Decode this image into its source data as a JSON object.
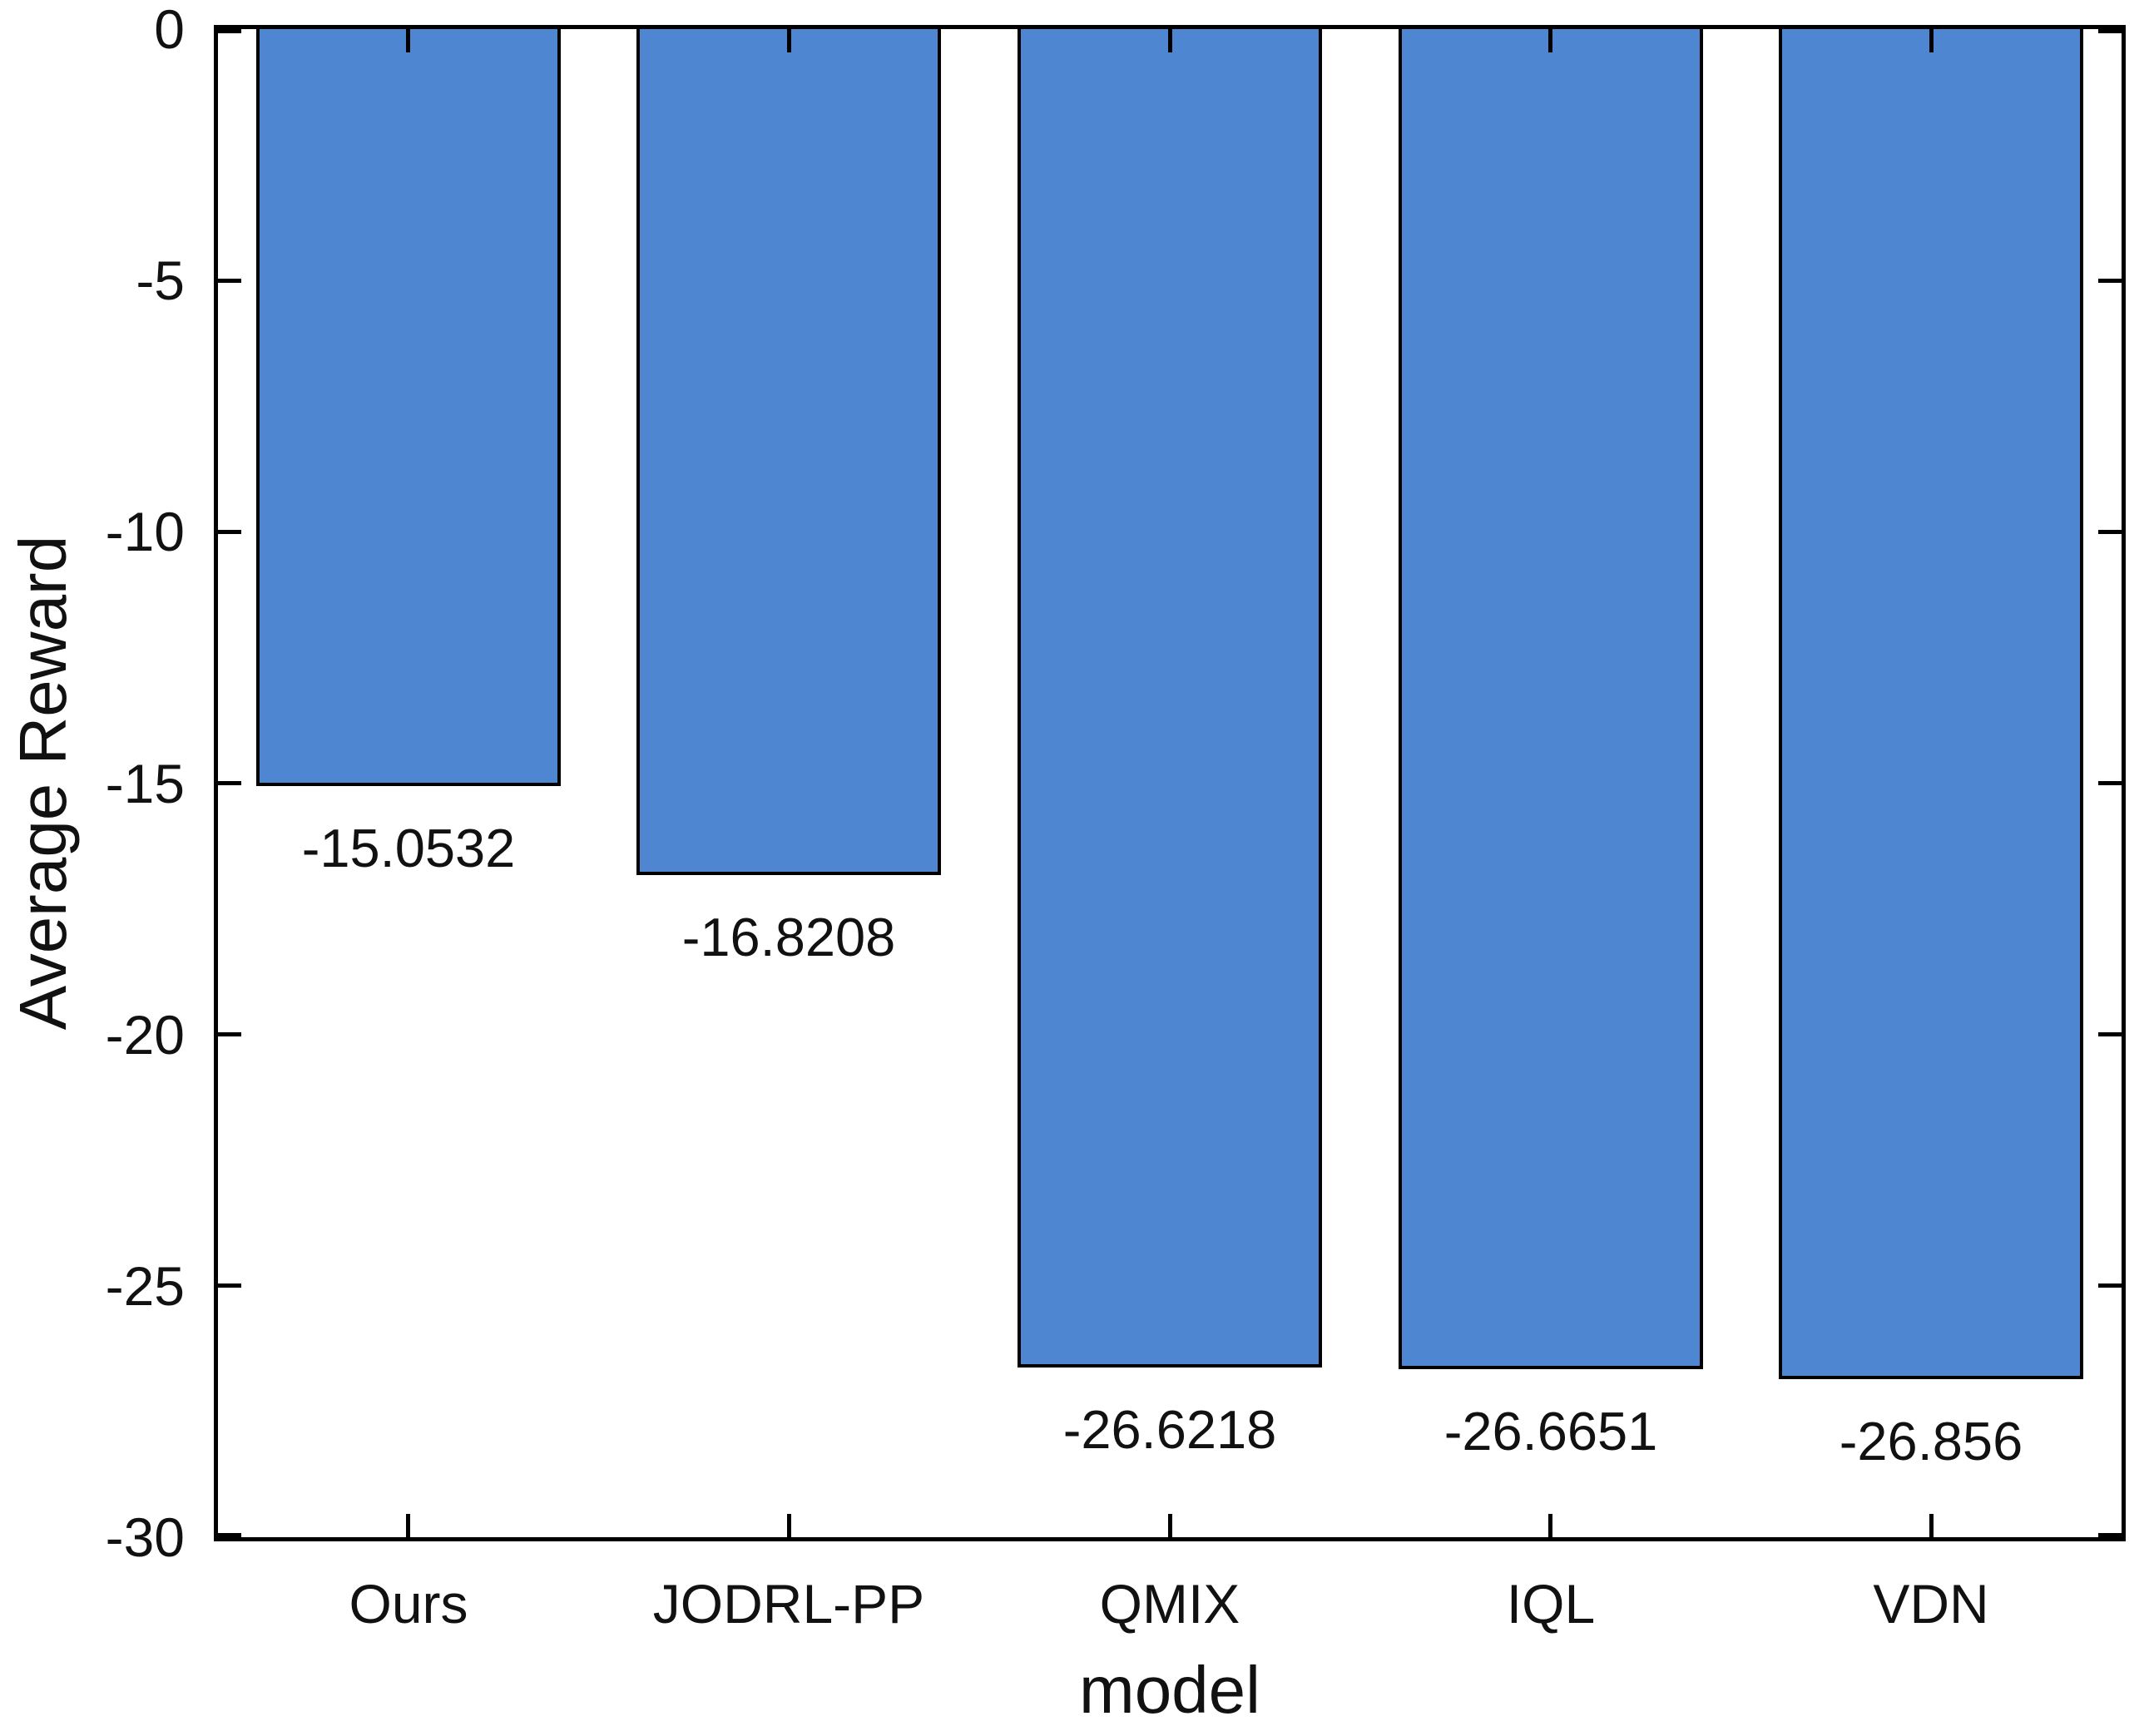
{
  "chart_data": {
    "type": "bar",
    "title": "",
    "xlabel": "model",
    "ylabel": "Average Reward",
    "categories": [
      "Ours",
      "JODRL-PP",
      "QMIX",
      "IQL",
      "VDN"
    ],
    "values": [
      -15.0532,
      -16.8208,
      -26.6218,
      -26.6651,
      -26.856
    ],
    "value_labels": [
      "-15.0532",
      "-16.8208",
      "-26.6218",
      "-26.6651",
      "-26.856"
    ],
    "ylim": [
      -30,
      0
    ],
    "yticks": [
      0,
      -5,
      -10,
      -15,
      -20,
      -25,
      -30
    ],
    "ytick_labels": [
      "0",
      "-5",
      "-10",
      "-15",
      "-20",
      "-25",
      "-30"
    ],
    "bar_color": "#4E86D2",
    "bar_edge_color": "#000000",
    "axis_color": "#000000",
    "bar_width_fraction": 0.8,
    "grid": false,
    "legend_position": "none",
    "tick_direction": "in",
    "box": "on"
  }
}
